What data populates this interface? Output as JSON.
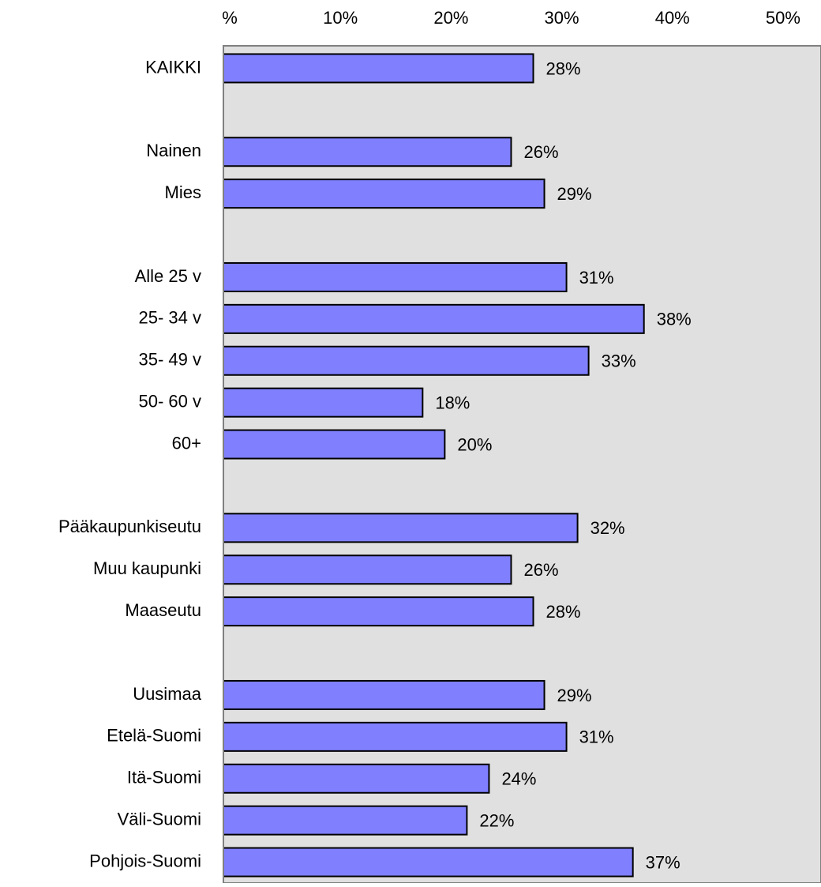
{
  "chart_data": {
    "type": "bar",
    "orientation": "horizontal",
    "categories": [
      "KAIKKI",
      null,
      "Nainen",
      "Mies",
      null,
      "Alle 25 v",
      "25- 34 v",
      "35- 49 v",
      "50- 60 v",
      "60+",
      null,
      "Pääkaupunkiseutu",
      "Muu kaupunki",
      "Maaseutu",
      null,
      "Uusimaa",
      "Etelä-Suomi",
      "Itä-Suomi",
      "Väli-Suomi",
      "Pohjois-Suomi"
    ],
    "values": [
      28,
      null,
      26,
      29,
      null,
      31,
      38,
      33,
      18,
      20,
      null,
      32,
      26,
      28,
      null,
      29,
      31,
      24,
      22,
      37
    ],
    "value_labels": [
      "28%",
      null,
      "26%",
      "29%",
      null,
      "31%",
      "38%",
      "33%",
      "18%",
      "20%",
      null,
      "32%",
      "26%",
      "28%",
      null,
      "29%",
      "31%",
      "24%",
      "22%",
      "37%"
    ],
    "color": "#8080ff",
    "xlim": [
      0,
      54
    ],
    "xticks": [
      {
        "value": 0,
        "label": "%"
      },
      {
        "value": 10,
        "label": "10%"
      },
      {
        "value": 20,
        "label": "20%"
      },
      {
        "value": 30,
        "label": "30%"
      },
      {
        "value": 40,
        "label": "40%"
      },
      {
        "value": 50,
        "label": "50%"
      }
    ],
    "grid": false
  }
}
